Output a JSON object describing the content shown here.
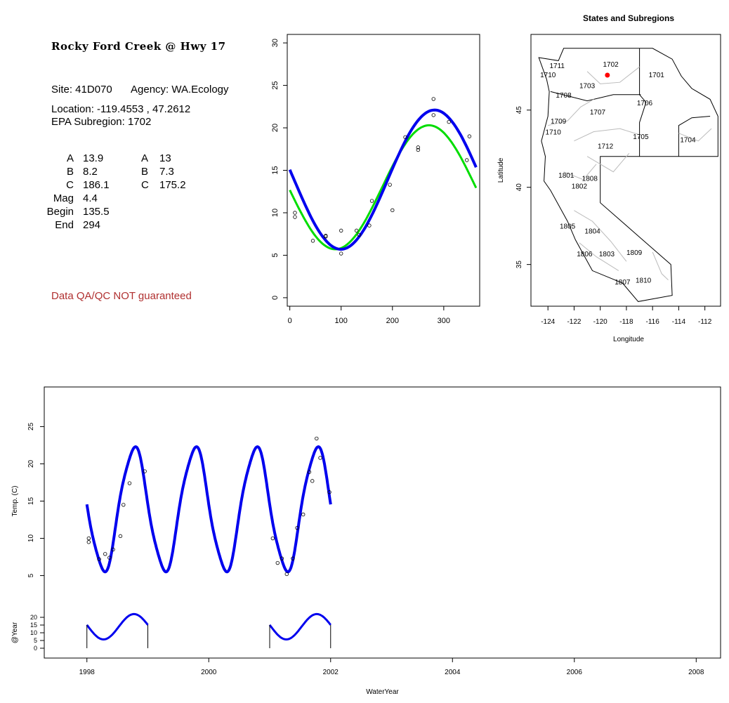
{
  "site_panel": {
    "title": "Rocky Ford Creek @ Hwy 17",
    "site": "Site: 41D070",
    "agency": "Agency: WA.Ecology",
    "location": "Location: -119.4553 , 47.2612",
    "subregion": "EPA Subregion: 1702",
    "coef_left": [
      {
        "label": "A",
        "value": "13.9"
      },
      {
        "label": "B",
        "value": "8.2"
      },
      {
        "label": "C",
        "value": "186.1"
      },
      {
        "label": "Mag",
        "value": "4.4"
      },
      {
        "label": "Begin",
        "value": "135.5"
      },
      {
        "label": "End",
        "value": "294"
      }
    ],
    "coef_right": [
      {
        "label": "A",
        "value": "13"
      },
      {
        "label": "B",
        "value": "7.3"
      },
      {
        "label": "C",
        "value": "175.2"
      }
    ],
    "disclaimer": "Data QA/QC NOT guaranteed"
  },
  "chart_data": [
    {
      "type": "scatter",
      "id": "seasonal",
      "xlim": [
        -5,
        370
      ],
      "ylim": [
        -1,
        31
      ],
      "xticks": [
        0,
        100,
        200,
        300
      ],
      "yticks": [
        0,
        5,
        10,
        15,
        20,
        25,
        30
      ],
      "points": [
        [
          10,
          10.0
        ],
        [
          10,
          9.5
        ],
        [
          45,
          6.7
        ],
        [
          70,
          7.3
        ],
        [
          70,
          7.2
        ],
        [
          100,
          5.2
        ],
        [
          100,
          7.9
        ],
        [
          130,
          7.9
        ],
        [
          135,
          7.4
        ],
        [
          155,
          8.5
        ],
        [
          160,
          11.4
        ],
        [
          195,
          13.3
        ],
        [
          200,
          10.3
        ],
        [
          225,
          18.9
        ],
        [
          250,
          17.7
        ],
        [
          250,
          17.4
        ],
        [
          280,
          23.4
        ],
        [
          280,
          21.5
        ],
        [
          310,
          20.7
        ],
        [
          345,
          16.2
        ],
        [
          350,
          19.0
        ]
      ],
      "series": [
        {
          "color": "#00dd00",
          "A": 13,
          "B": 7.3,
          "C": 175.2
        },
        {
          "color": "#0000ee",
          "A": 13.9,
          "B": 8.2,
          "C": 186.1
        }
      ]
    },
    {
      "type": "map",
      "id": "subregions",
      "title": "States and Subregions",
      "xlabel": "Longitude",
      "ylabel": "Latitude",
      "xticks": [
        -124,
        -122,
        -120,
        -118,
        -116,
        -114,
        -112
      ],
      "yticks": [
        35,
        40,
        45
      ],
      "xlim": [
        -125.3,
        -110.8
      ],
      "ylim": [
        32.3,
        49.9
      ],
      "site_point": {
        "lon": -119.4553,
        "lat": 47.2612,
        "color": "#ff0000"
      },
      "labels": [
        {
          "text": "1702",
          "lon": -119.2,
          "lat": 48.0
        },
        {
          "text": "1711",
          "lon": -123.3,
          "lat": 47.9
        },
        {
          "text": "1710",
          "lon": -124.0,
          "lat": 47.3
        },
        {
          "text": "1701",
          "lon": -115.7,
          "lat": 47.3
        },
        {
          "text": "1703",
          "lon": -121.0,
          "lat": 46.6
        },
        {
          "text": "1708",
          "lon": -122.8,
          "lat": 46.0
        },
        {
          "text": "1706",
          "lon": -116.6,
          "lat": 45.5
        },
        {
          "text": "1707",
          "lon": -120.2,
          "lat": 44.9
        },
        {
          "text": "1709",
          "lon": -123.2,
          "lat": 44.3
        },
        {
          "text": "1710",
          "lon": -123.6,
          "lat": 43.6
        },
        {
          "text": "1705",
          "lon": -116.9,
          "lat": 43.3
        },
        {
          "text": "1704",
          "lon": -113.3,
          "lat": 43.1
        },
        {
          "text": "1712",
          "lon": -119.6,
          "lat": 42.7
        },
        {
          "text": "1801",
          "lon": -122.6,
          "lat": 40.8
        },
        {
          "text": "1808",
          "lon": -120.8,
          "lat": 40.6
        },
        {
          "text": "1802",
          "lon": -121.6,
          "lat": 40.1
        },
        {
          "text": "1805",
          "lon": -122.5,
          "lat": 37.5
        },
        {
          "text": "1804",
          "lon": -120.6,
          "lat": 37.2
        },
        {
          "text": "1809",
          "lon": -117.4,
          "lat": 35.8
        },
        {
          "text": "1806",
          "lon": -121.2,
          "lat": 35.7
        },
        {
          "text": "1803",
          "lon": -119.5,
          "lat": 35.7
        },
        {
          "text": "1807",
          "lon": -118.3,
          "lat": 33.9
        },
        {
          "text": "1810",
          "lon": -116.7,
          "lat": 34.0
        }
      ]
    },
    {
      "type": "line",
      "id": "timeseries",
      "xlabel": "WaterYear",
      "ylabel": "Temp. (C)",
      "ylabel2": "@Year",
      "xlim": [
        1997.3,
        2008.4
      ],
      "xticks": [
        1998,
        2000,
        2002,
        2004,
        2006,
        2008
      ],
      "yticks": [
        5,
        10,
        15,
        20,
        25
      ],
      "yticks2": [
        0,
        5,
        10,
        15,
        20
      ],
      "fit_range": [
        1998.0,
        2002.0
      ],
      "observed": [
        [
          1998.03,
          9.5
        ],
        [
          1998.03,
          10.0
        ],
        [
          1998.2,
          7.2
        ],
        [
          1998.3,
          7.9
        ],
        [
          1998.37,
          7.4
        ],
        [
          1998.43,
          8.5
        ],
        [
          1998.55,
          10.3
        ],
        [
          1998.6,
          14.5
        ],
        [
          1998.7,
          17.4
        ],
        [
          1998.95,
          19.0
        ],
        [
          2001.05,
          10.0
        ],
        [
          2001.13,
          6.7
        ],
        [
          2001.2,
          7.3
        ],
        [
          2001.28,
          5.2
        ],
        [
          2001.38,
          7.3
        ],
        [
          2001.45,
          11.4
        ],
        [
          2001.55,
          13.2
        ],
        [
          2001.65,
          18.9
        ],
        [
          2001.7,
          17.7
        ],
        [
          2001.77,
          23.4
        ],
        [
          2001.83,
          20.8
        ],
        [
          2001.98,
          16.2
        ]
      ],
      "yearly_segments": [
        [
          1998.0,
          1999.0
        ],
        [
          2001.0,
          2002.0
        ]
      ]
    }
  ]
}
